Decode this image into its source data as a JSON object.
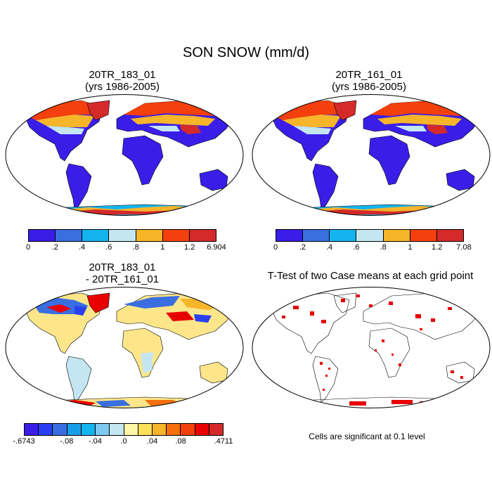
{
  "title": "SON SNOW (mm/d)",
  "panels": {
    "p1": {
      "title1": "20TR_183_01",
      "title2": "(yrs 1986-2005)"
    },
    "p2": {
      "title1": "20TR_161_01",
      "title2": "(yrs 1986-2005)"
    },
    "p3": {
      "title1": "20TR_183_01",
      "title2": "- 20TR_161_01"
    },
    "p4": {
      "title1": "T-Test of two Case means at each grid point",
      "note": "Cells are significant at 0.1 level"
    }
  },
  "colorbars": {
    "cb1": {
      "colors": [
        "#3a1ee8",
        "#3b6fe0",
        "#14b4f0",
        "#c4e6f2",
        "#f7b52a",
        "#f4400c",
        "#d42a2a"
      ],
      "labels": [
        "0",
        ".2",
        ".4",
        ".6",
        ".8",
        "1",
        "1.2",
        "6.904"
      ]
    },
    "cb2": {
      "colors": [
        "#3a1ee8",
        "#3b6fe0",
        "#14b4f0",
        "#c4e6f2",
        "#f7b52a",
        "#f4400c",
        "#d42a2a"
      ],
      "labels": [
        "0",
        ".2",
        ".4",
        ".6",
        ".8",
        "1",
        "1.2",
        "7.08"
      ]
    },
    "cb3": {
      "colors": [
        "#3a1ee8",
        "#2a40f0",
        "#3a6ee0",
        "#1a9de8",
        "#14b4f0",
        "#7ccaf0",
        "#c4e6f2",
        "#fff6a8",
        "#fde05a",
        "#f7b52a",
        "#f4700c",
        "#f4400c",
        "#e80000",
        "#d42a2a"
      ],
      "labels": [
        "-.6743",
        "-.08",
        "-.04",
        ".0",
        ".04",
        ".08",
        ".4711"
      ]
    }
  },
  "legend_colors": {
    "land_low": "#3a1ee8",
    "significant": "#e80000",
    "diff_base": "#fde68a",
    "diff_neg": "#c4e6f2"
  }
}
